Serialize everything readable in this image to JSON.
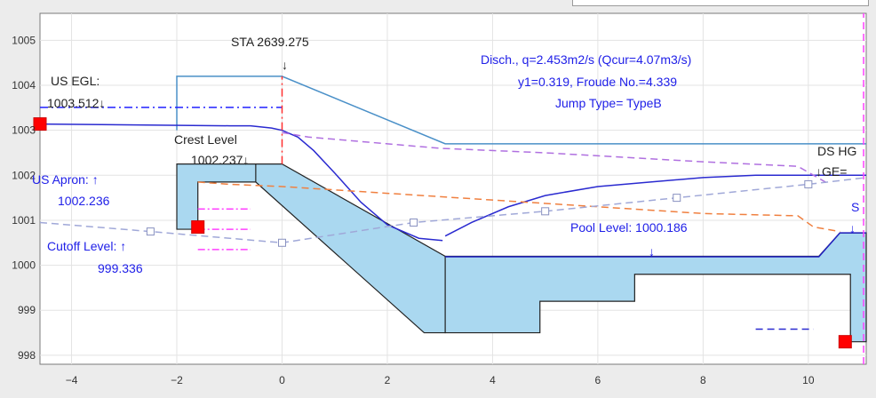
{
  "chart_data": {
    "type": "line",
    "title": "",
    "xlabel": "",
    "ylabel": "",
    "xlim": [
      -4.6,
      11.1
    ],
    "ylim": [
      997.8,
      1005.6
    ],
    "grid": true,
    "x_ticks": [
      -4,
      -2,
      0,
      2,
      4,
      6,
      8,
      10
    ],
    "y_ticks": [
      998,
      999,
      1000,
      1001,
      1002,
      1003,
      1004,
      1005
    ],
    "structure_fill": "#aad8f0",
    "annotations": {
      "sta": "STA 2639.275",
      "sta_arrow": "↓",
      "us_egl_title": "US EGL:",
      "us_egl_value": "1003.512↓",
      "crest_title": "Crest Level",
      "crest_value": "1002.237↓",
      "us_apron_title": "US Apron: ↑",
      "us_apron_value": "1002.236",
      "cutoff_title": "Cutoff Level: ↑",
      "cutoff_value": "999.336",
      "disch_line1": "Disch., q=2.453m2/s (Qcur=4.07m3/s)",
      "disch_line2": "y1=0.319, Froude No.=4.339",
      "disch_line3": "Jump Type= TypeB",
      "pool_level": "Pool Level: 1000.186",
      "pool_arrow": "↓",
      "ds_title": "DS HG",
      "ds_value": "↓GE=",
      "s_label": "S",
      "s_arrow": "↓"
    },
    "series": [
      {
        "color": "#4a90c8",
        "style": "solid",
        "x": [
          -2,
          -2,
          0,
          3.1,
          11.1
        ],
        "y": [
          1003.0,
          1004.2,
          1004.2,
          1002.7,
          1002.7
        ]
      },
      {
        "color": "#2a2ad0",
        "style": "solid",
        "x": [
          -4.6,
          -1.0,
          -0.6,
          -0.2,
          0.0,
          0.3,
          0.6,
          1.0,
          1.5,
          2.0,
          2.6,
          3.05
        ],
        "y": [
          1003.14,
          1003.1,
          1003.1,
          1003.05,
          1003.0,
          1002.85,
          1002.55,
          1002.05,
          1001.4,
          1000.9,
          1000.6,
          1000.55
        ]
      },
      {
        "color": "#2a2ad0",
        "style": "solid",
        "x": [
          3.1,
          3.6,
          4.3,
          5.0,
          6.0,
          7.0,
          8.0,
          9.0,
          11.1
        ],
        "y": [
          1000.65,
          1000.95,
          1001.3,
          1001.55,
          1001.75,
          1001.85,
          1001.95,
          1002.0,
          1002.0
        ]
      },
      {
        "color": "#2020c0",
        "style": "solid",
        "x": [
          3.1,
          10.2,
          10.6,
          11.1
        ],
        "y": [
          1000.19,
          1000.19,
          1000.72,
          1000.72
        ]
      },
      {
        "color": "#2020ff",
        "style": "dashdot",
        "x": [
          -4.6,
          0
        ],
        "y": [
          1003.51,
          1003.51
        ]
      },
      {
        "color": "#b070e0",
        "style": "dash",
        "x": [
          0,
          0.5,
          1.0,
          2.0,
          3.0,
          5.0,
          8.0,
          9.8,
          10.1,
          10.4
        ],
        "y": [
          1002.95,
          1002.85,
          1002.8,
          1002.7,
          1002.6,
          1002.5,
          1002.3,
          1002.2,
          1002.0,
          1001.8
        ]
      },
      {
        "color": "#f08040",
        "style": "dash",
        "x": [
          -1.6,
          -1.0,
          0,
          2.0,
          4.0,
          6.0,
          8.0,
          9.8,
          10.1,
          10.6
        ],
        "y": [
          1001.85,
          1001.8,
          1001.75,
          1001.6,
          1001.45,
          1001.3,
          1001.15,
          1001.1,
          1000.85,
          1000.75
        ]
      },
      {
        "color": "#a0a8d8",
        "style": "dash",
        "x": [
          -4.6,
          -2.5,
          0,
          2.5,
          5.0,
          7.5,
          10.0,
          11.1
        ],
        "y": [
          1000.95,
          1000.75,
          1000.5,
          1000.95,
          1001.2,
          1001.5,
          1001.8,
          1001.95
        ]
      },
      {
        "color": "#2a2ad0",
        "style": "dash",
        "x": [
          9.0,
          10.1
        ],
        "y": [
          998.58,
          998.58
        ]
      }
    ],
    "vlines": [
      {
        "x": 0,
        "y": [
          1002.25,
          1004.2
        ],
        "color": "#ff3030",
        "style": "dashdot"
      },
      {
        "x": 11.05,
        "y": [
          997.8,
          1005.6
        ],
        "color": "#ff40ff",
        "style": "dash"
      }
    ],
    "hlines_short": [
      {
        "x": [
          -1.6,
          -0.6
        ],
        "y": 1001.25,
        "color": "#ff40ff"
      },
      {
        "x": [
          -1.6,
          -0.6
        ],
        "y": 1000.8,
        "color": "#ff40ff"
      },
      {
        "x": [
          -1.6,
          -0.6
        ],
        "y": 1000.35,
        "color": "#ff40ff"
      }
    ],
    "markers_square": [
      {
        "x": -4.6,
        "y": 1003.14
      },
      {
        "x": -1.6,
        "y": 1000.85
      },
      {
        "x": 10.7,
        "y": 998.3
      }
    ],
    "markers_open": [
      {
        "x": -2.5,
        "y": 1000.75
      },
      {
        "x": 0,
        "y": 1000.5
      },
      {
        "x": 2.5,
        "y": 1000.95
      },
      {
        "x": 5.0,
        "y": 1001.2
      },
      {
        "x": 7.5,
        "y": 1001.5
      },
      {
        "x": 10.0,
        "y": 1001.8
      }
    ],
    "structure": {
      "upstream": {
        "x": [
          -2,
          -0.5,
          -0.5,
          0,
          0,
          3.1,
          3.1,
          2.7,
          -0.5,
          -1.6,
          -1.6,
          -2
        ],
        "y": [
          1002.25,
          1002.25,
          1002.25,
          1002.25,
          1002.25,
          1000.2,
          998.5,
          998.5,
          1001.85,
          1001.85,
          1000.8,
          1000.8
        ]
      },
      "apron_edge": {
        "x": [
          -0.5,
          -0.5
        ],
        "y": [
          1002.25,
          1001.85
        ]
      },
      "downstream": {
        "x": [
          3.1,
          10.2,
          10.6,
          11.1,
          11.1,
          10.8,
          10.8,
          10.4,
          10.4,
          6.7,
          6.7,
          4.9,
          4.9,
          3.1
        ],
        "y": [
          1000.2,
          1000.2,
          1000.72,
          1000.72,
          998.3,
          998.3,
          999.8,
          999.8,
          999.8,
          999.8,
          999.2,
          999.2,
          998.5,
          998.5
        ]
      }
    }
  }
}
